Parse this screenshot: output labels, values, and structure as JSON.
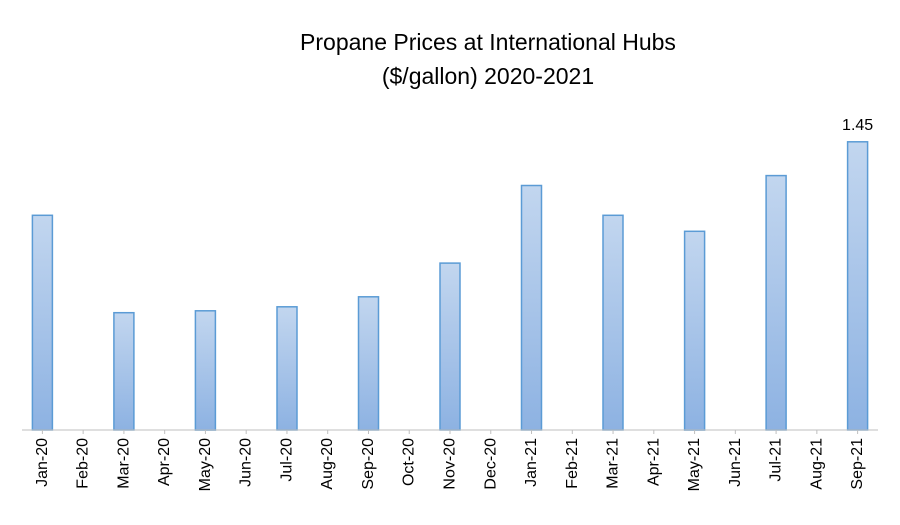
{
  "chart_data": {
    "type": "bar",
    "title": "Propane Prices at International Hubs",
    "subtitle": "($/gallon) 2020-2021",
    "categories": [
      "Jan-20",
      "Feb-20",
      "Mar-20",
      "Apr-20",
      "May-20",
      "Jun-20",
      "Jul-20",
      "Aug-20",
      "Sep-20",
      "Oct-20",
      "Nov-20",
      "Dec-20",
      "Jan-21",
      "Feb-21",
      "Mar-21",
      "Apr-21",
      "May-21",
      "Jun-21",
      "Jul-21",
      "Aug-21",
      "Sep-21"
    ],
    "values": [
      1.08,
      null,
      0.59,
      null,
      0.6,
      null,
      0.62,
      null,
      0.67,
      null,
      0.84,
      null,
      1.23,
      null,
      1.08,
      null,
      1.0,
      null,
      1.28,
      null,
      1.45
    ],
    "data_labels": [
      {
        "category": "Sep-21",
        "text": "1.45"
      }
    ],
    "ylim": [
      0,
      1.6
    ],
    "xlabel": "",
    "ylabel": "",
    "grid": false,
    "legend": "none",
    "colors": {
      "bar_fill_top": "#c2d6ef",
      "bar_fill_bottom": "#8db2e2",
      "bar_stroke": "#5b9bd5",
      "axis": "#bfbfbf"
    }
  }
}
